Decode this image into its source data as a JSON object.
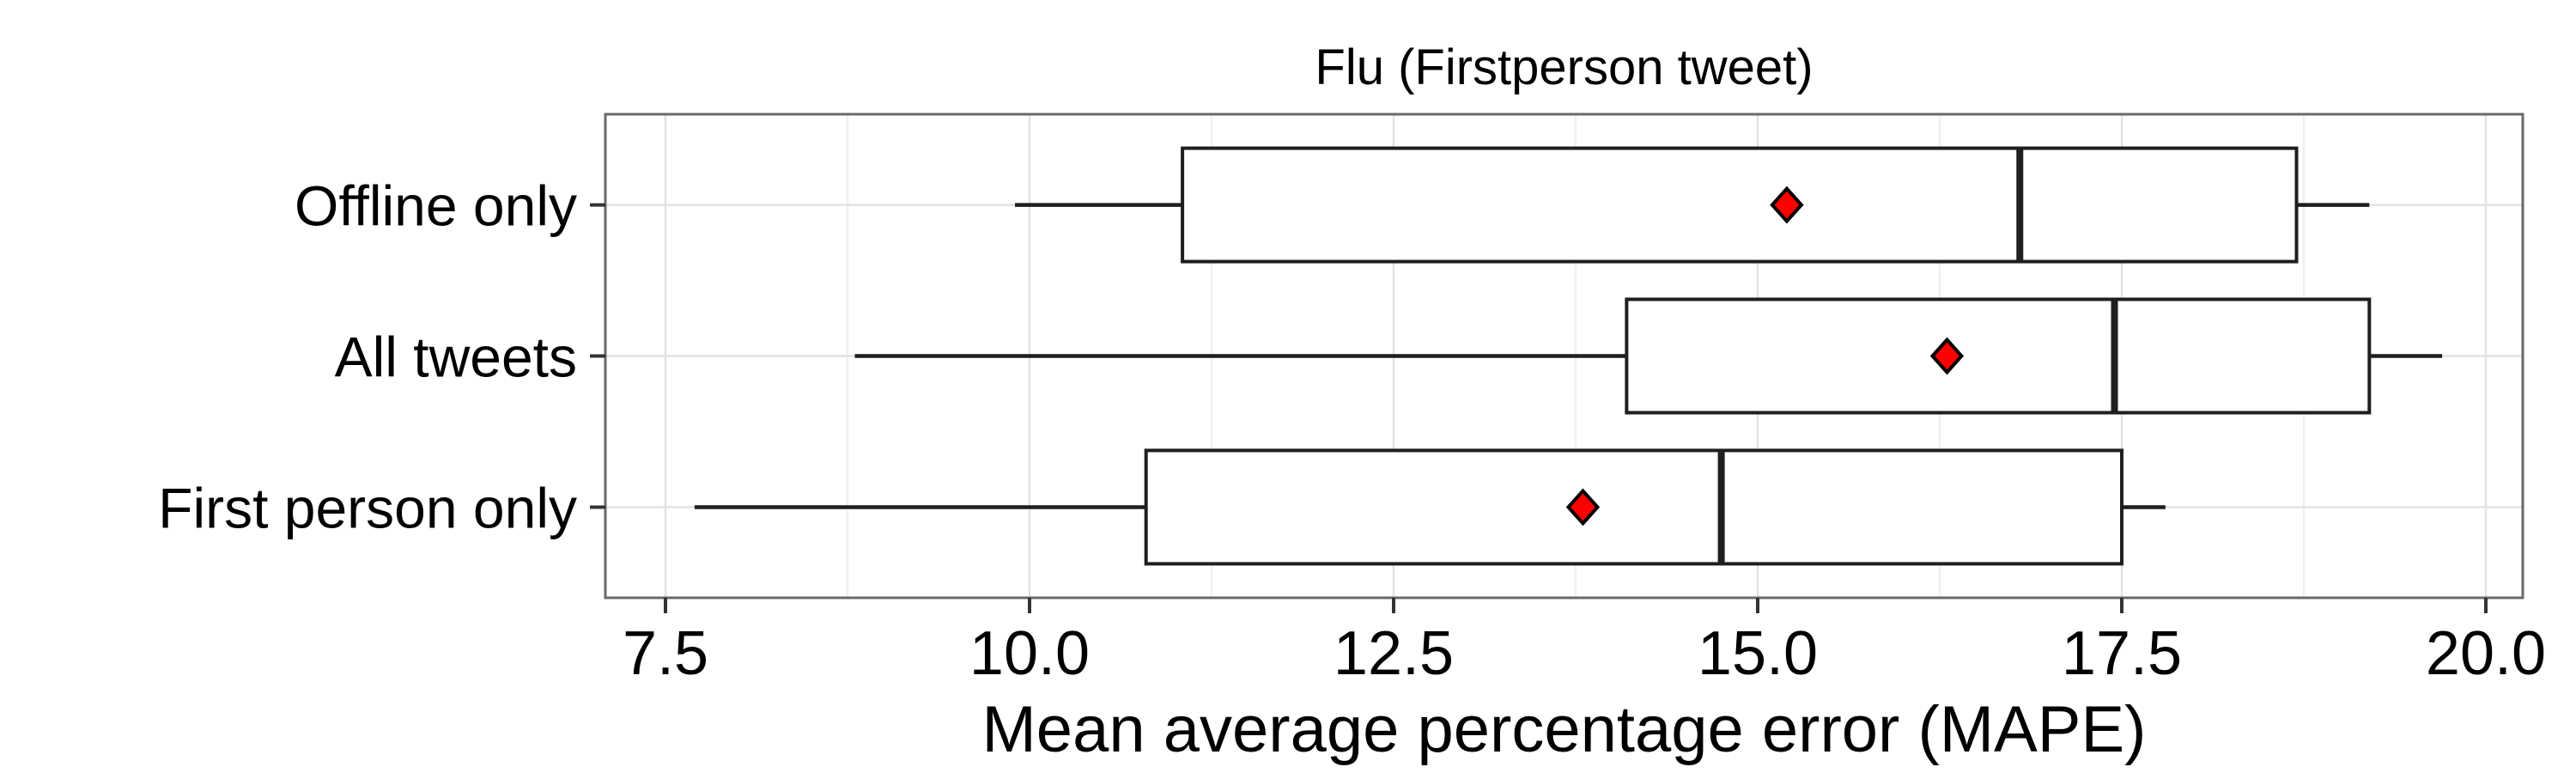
{
  "figure": {
    "background": "#ffffff"
  },
  "chart_data": {
    "type": "boxplot",
    "orientation": "horizontal",
    "title": "Flu  (Firstperson tweet)",
    "xlabel": "Mean average percentage error (MAPE)",
    "ylabel": "",
    "xlim": [
      7.09,
      20.25
    ],
    "x_major_ticks": [
      7.5,
      10.0,
      12.5,
      15.0,
      17.5,
      20.0
    ],
    "x_tick_labels": [
      "7.5",
      "10.0",
      "12.5",
      "15.0",
      "17.5",
      "20.0"
    ],
    "x_minor_gridlines": [
      8.75,
      11.25,
      13.75,
      16.25,
      18.75
    ],
    "grid": "vertical major+minor, horizontal major at category rows",
    "legend": "none",
    "categories": [
      "Offline only",
      "All tweets",
      "First person only"
    ],
    "series": [
      {
        "category": "Offline only",
        "whisker_low": 9.9,
        "q1": 11.05,
        "median": 16.8,
        "q3": 18.7,
        "whisker_high": 19.2,
        "mean": 15.2
      },
      {
        "category": "All tweets",
        "whisker_low": 8.8,
        "q1": 14.1,
        "median": 17.45,
        "q3": 19.2,
        "whisker_high": 19.7,
        "mean": 16.3
      },
      {
        "category": "First person only",
        "whisker_low": 7.7,
        "q1": 10.8,
        "median": 14.75,
        "q3": 17.5,
        "whisker_high": 17.8,
        "mean": 13.8
      }
    ],
    "mean_marker": {
      "shape": "diamond",
      "fill": "#ff0000",
      "stroke": "#000000"
    },
    "colors": {
      "box_stroke": "#1f1f1f",
      "box_fill": "#ffffff",
      "panel_border": "#696969",
      "grid_major": "#e2e2e2",
      "grid_minor": "#f0f0f0",
      "tick": "#333333",
      "text": "#000000",
      "background": "#ffffff"
    }
  }
}
